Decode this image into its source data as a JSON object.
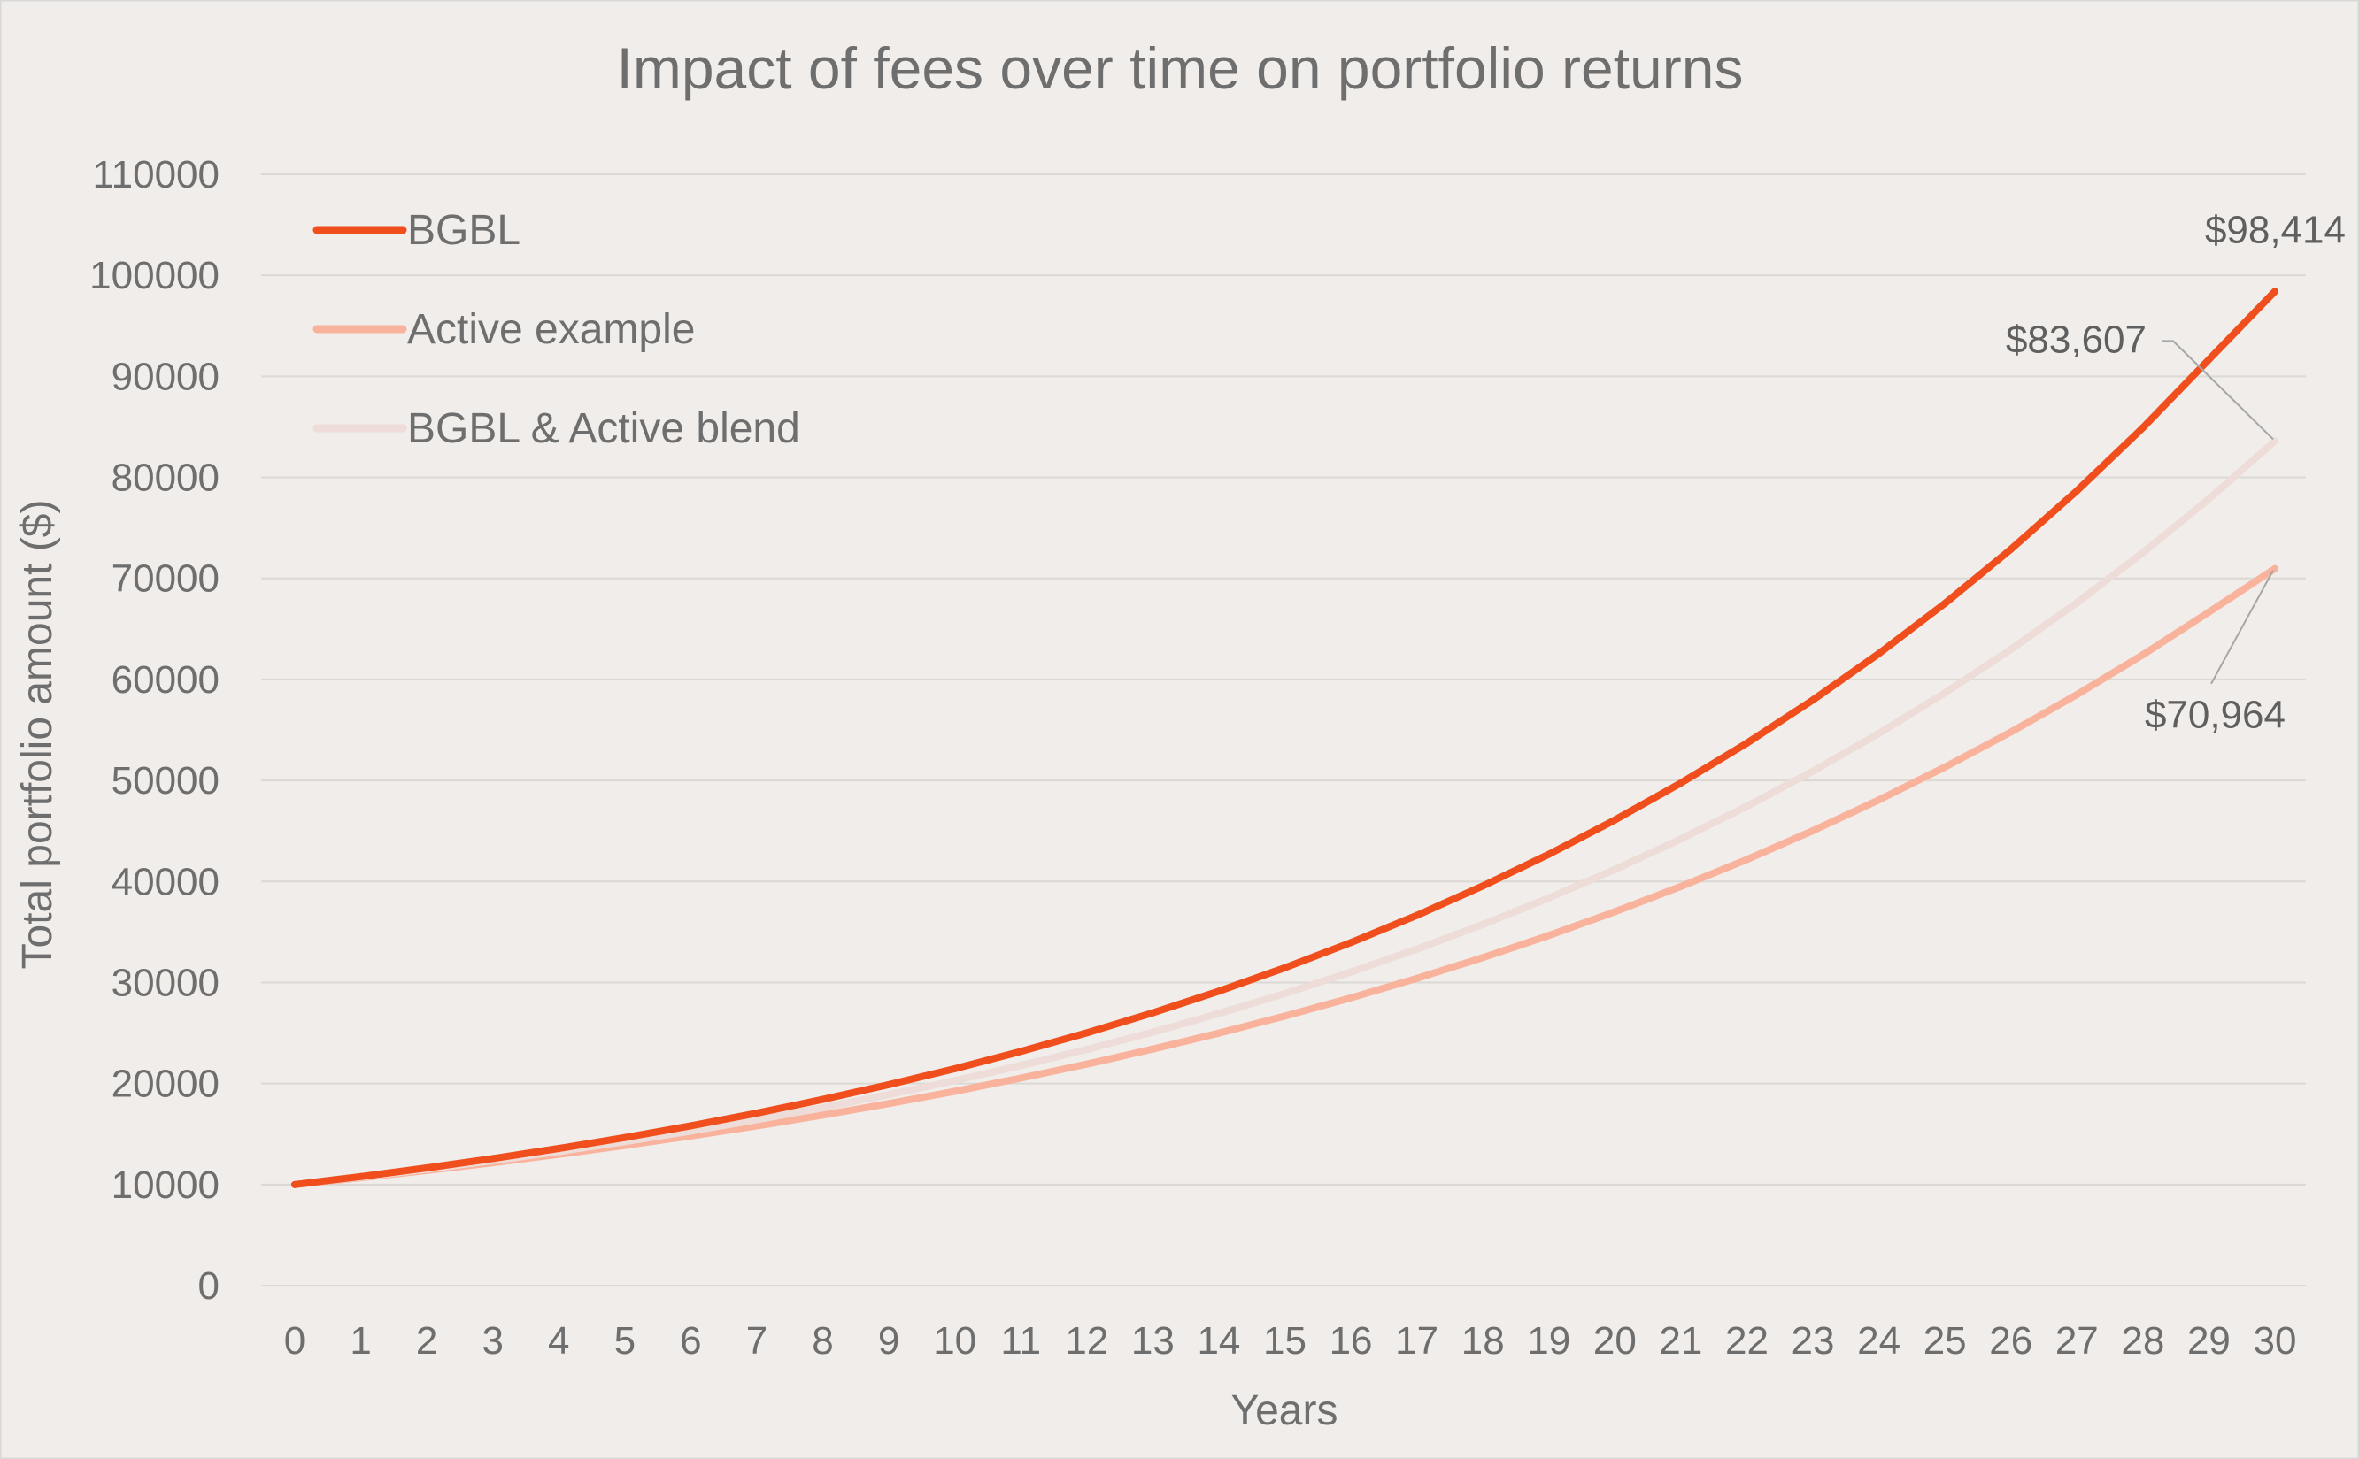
{
  "chart_data": {
    "type": "line",
    "title": "Impact of fees over time on portfolio returns",
    "xlabel": "Years",
    "ylabel": "Total portfolio amount ($)",
    "categories": [
      "0",
      "1",
      "2",
      "3",
      "4",
      "5",
      "6",
      "7",
      "8",
      "9",
      "10",
      "11",
      "12",
      "13",
      "14",
      "15",
      "16",
      "17",
      "18",
      "19",
      "20",
      "21",
      "22",
      "23",
      "24",
      "25",
      "26",
      "27",
      "28",
      "29",
      "30"
    ],
    "y_ticks": [
      "0",
      "10000",
      "20000",
      "30000",
      "40000",
      "50000",
      "60000",
      "70000",
      "80000",
      "90000",
      "100000",
      "110000"
    ],
    "ylim": [
      0,
      110000
    ],
    "grid": "horizontal",
    "legend_position": "top-left",
    "series": [
      {
        "name": "BGBL",
        "color": "#f04e1c",
        "values": [
          10000,
          10794,
          11651,
          12576,
          13574,
          14652,
          15815,
          17071,
          18426,
          19889,
          21468,
          23172,
          25012,
          26998,
          29141,
          31455,
          33952,
          36647,
          39557,
          42697,
          46087,
          49746,
          53696,
          57958,
          62560,
          67527,
          72888,
          78674,
          84920,
          91662,
          98414
        ]
      },
      {
        "name": "Active example",
        "color": "#f9b39c",
        "values": [
          10000,
          10676,
          11398,
          12169,
          12991,
          13870,
          14807,
          15808,
          16877,
          18018,
          19236,
          20537,
          21925,
          23407,
          24989,
          26679,
          28483,
          30408,
          32464,
          34659,
          37002,
          39503,
          42174,
          45025,
          48069,
          51319,
          54789,
          58493,
          62447,
          66669,
          70964
        ]
      },
      {
        "name": "BGBL & Active blend",
        "color": "#eddcd8",
        "values": [
          10000,
          10733,
          11520,
          12365,
          13272,
          14245,
          15290,
          16411,
          17614,
          18906,
          20292,
          21781,
          23378,
          25092,
          26933,
          28908,
          31028,
          33304,
          35746,
          38368,
          41182,
          44202,
          47444,
          50923,
          54658,
          58666,
          62969,
          67588,
          72545,
          77865,
          83607
        ]
      }
    ],
    "annotations": [
      {
        "series": "BGBL",
        "text": "$98,414"
      },
      {
        "series": "BGBL & Active blend",
        "text": "$83,607"
      },
      {
        "series": "Active example",
        "text": "$70,964"
      }
    ]
  }
}
